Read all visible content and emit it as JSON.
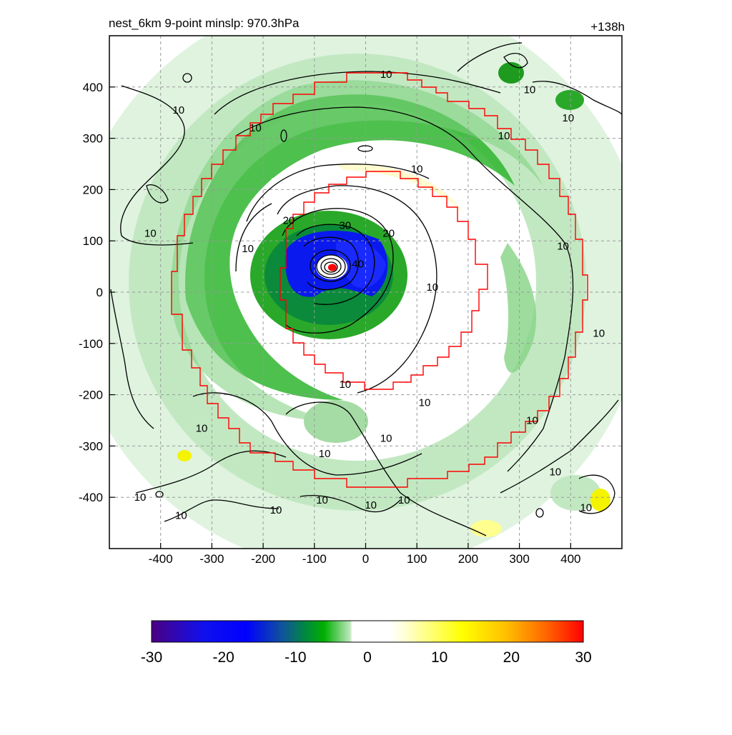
{
  "chart_data": {
    "type": "heatmap",
    "title_left": "nest_6km  9-point minslp: 970.3hPa",
    "title_right": "+138h",
    "xlim": [
      -500,
      500
    ],
    "ylim": [
      -500,
      500
    ],
    "xticks": [
      -400,
      -300,
      -200,
      -100,
      0,
      100,
      200,
      300,
      400
    ],
    "yticks": [
      -400,
      -300,
      -200,
      -100,
      0,
      100,
      200,
      300,
      400
    ],
    "grid": true,
    "storm_center": [
      -65,
      48
    ],
    "minslp": "970.3hPa",
    "colorbar": {
      "min": -30,
      "max": 30,
      "ticks": [
        -30,
        -20,
        -10,
        0,
        10,
        20,
        30
      ]
    },
    "contour_labels": [
      {
        "text": "10",
        "x": 40,
        "y": 425
      },
      {
        "text": "10",
        "x": 320,
        "y": 395
      },
      {
        "text": "10",
        "x": 395,
        "y": 340
      },
      {
        "text": "10",
        "x": -365,
        "y": 355
      },
      {
        "text": "10",
        "x": -215,
        "y": 320
      },
      {
        "text": "10",
        "x": 270,
        "y": 305
      },
      {
        "text": "10",
        "x": 100,
        "y": 240
      },
      {
        "text": "10",
        "x": -420,
        "y": 115
      },
      {
        "text": "10",
        "x": -230,
        "y": 85
      },
      {
        "text": "10",
        "x": 385,
        "y": 90
      },
      {
        "text": "10",
        "x": 130,
        "y": 10
      },
      {
        "text": "10",
        "x": 455,
        "y": -80
      },
      {
        "text": "10",
        "x": -40,
        "y": -180
      },
      {
        "text": "10",
        "x": 115,
        "y": -215
      },
      {
        "text": "10",
        "x": 40,
        "y": -285
      },
      {
        "text": "10",
        "x": -320,
        "y": -265
      },
      {
        "text": "10",
        "x": -80,
        "y": -315
      },
      {
        "text": "10",
        "x": 325,
        "y": -250
      },
      {
        "text": "10",
        "x": 370,
        "y": -350
      },
      {
        "text": "10",
        "x": -440,
        "y": -400
      },
      {
        "text": "10",
        "x": -360,
        "y": -435
      },
      {
        "text": "10",
        "x": -175,
        "y": -425
      },
      {
        "text": "10",
        "x": -85,
        "y": -405
      },
      {
        "text": "10",
        "x": 10,
        "y": -415
      },
      {
        "text": "10",
        "x": 75,
        "y": -405
      },
      {
        "text": "10",
        "x": 430,
        "y": -420
      },
      {
        "text": "20",
        "x": -150,
        "y": 140
      },
      {
        "text": "20",
        "x": 45,
        "y": 115
      },
      {
        "text": "30",
        "x": -40,
        "y": 130
      },
      {
        "text": "40",
        "x": -15,
        "y": 55
      }
    ]
  },
  "colors": {
    "frame": "#000000",
    "grid": "#999999",
    "red_box": "#ff0000",
    "storm_dot": "#ff0000"
  }
}
